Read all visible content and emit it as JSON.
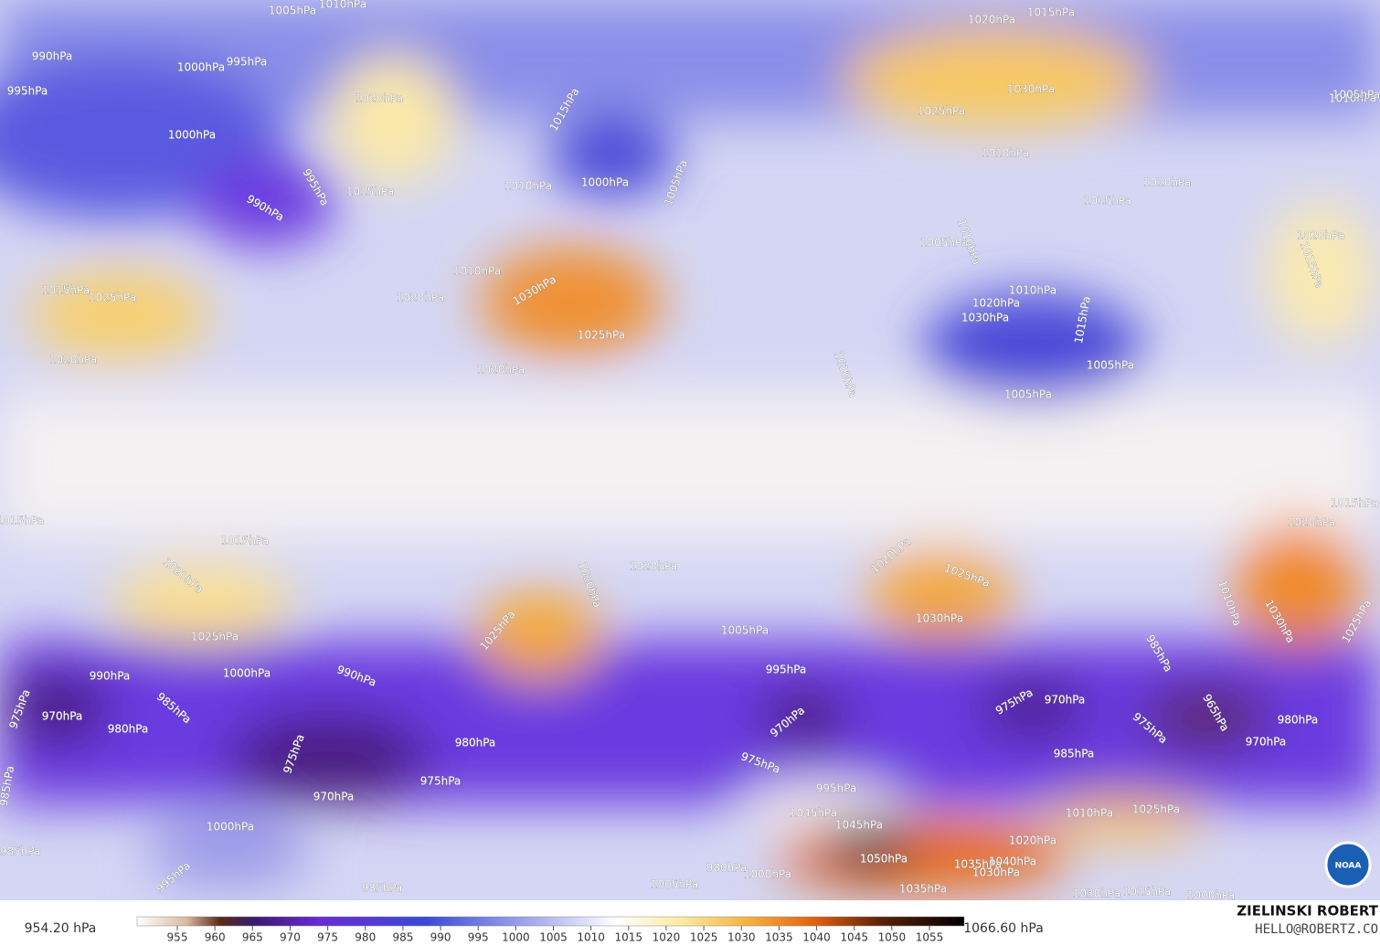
{
  "map": {
    "isobar_labels": [
      "1005hPa",
      "1010hPa",
      "1020hPa",
      "1015hPa",
      "990hPa",
      "1000hPa",
      "995hPa",
      "995hPa",
      "1020hPa",
      "1015hPa",
      "1030hPa",
      "1025hPa",
      "1010hPa",
      "1005hPa",
      "1000hPa",
      "1010hPa",
      "1000hPa",
      "1005hPa",
      "1010hPa",
      "1010hPa",
      "995hPa",
      "990hPa",
      "1015hPa",
      "1015hPa",
      "1020hPa",
      "1005hPa",
      "1010hPa",
      "1010hPa",
      "1015hPa",
      "1015hPa",
      "1025hPa",
      "1030hPa",
      "1020hPa",
      "1010hPa",
      "1020hPa",
      "1030hPa",
      "1015hPa",
      "1025hPa",
      "1020hPa",
      "1020hPa",
      "1010hPa",
      "1005hPa",
      "1005hPa",
      "1015hPa",
      "1020hPa",
      "1015hPa",
      "1015hPa",
      "1020hPa",
      "1020hPa",
      "1020hPa",
      "1025hPa",
      "1020hPa",
      "1010hPa",
      "1030hPa",
      "1025hPa",
      "1030hPa",
      "1025hPa",
      "1005hPa",
      "1025hPa",
      "985hPa",
      "1000hPa",
      "990hPa",
      "990hPa",
      "995hPa",
      "975hPa",
      "970hPa",
      "985hPa",
      "980hPa",
      "975hPa",
      "970hPa",
      "965hPa",
      "975hPa",
      "980hPa",
      "970hPa",
      "970hPa",
      "975hPa",
      "980hPa",
      "975hPa",
      "985hPa",
      "985hPa",
      "970hPa",
      "975hPa",
      "995hPa",
      "1045hPa",
      "1045hPa",
      "1010hPa",
      "1025hPa",
      "1020hPa",
      "1000hPa",
      "1050hPa",
      "1035hPa",
      "1040hPa",
      "1030hPa",
      "985hPa",
      "995hPa",
      "980hPa",
      "1000hPa",
      "1005hPa",
      "985hPa",
      "1035hPa",
      "1030hPa",
      "1015hPa",
      "1000hPa"
    ],
    "colorbar": {
      "min_label": "954.20 hPa",
      "max_label": "1066.60 hPa",
      "ticks": [
        955,
        960,
        965,
        970,
        975,
        980,
        985,
        990,
        995,
        1000,
        1005,
        1010,
        1015,
        1020,
        1025,
        1030,
        1035,
        1040,
        1045,
        1050,
        1055
      ]
    },
    "credit": {
      "name": "ZIELINSKI ROBERT",
      "email": "HELLO@ROBERTZ.CO"
    },
    "logo": "NOAA"
  }
}
